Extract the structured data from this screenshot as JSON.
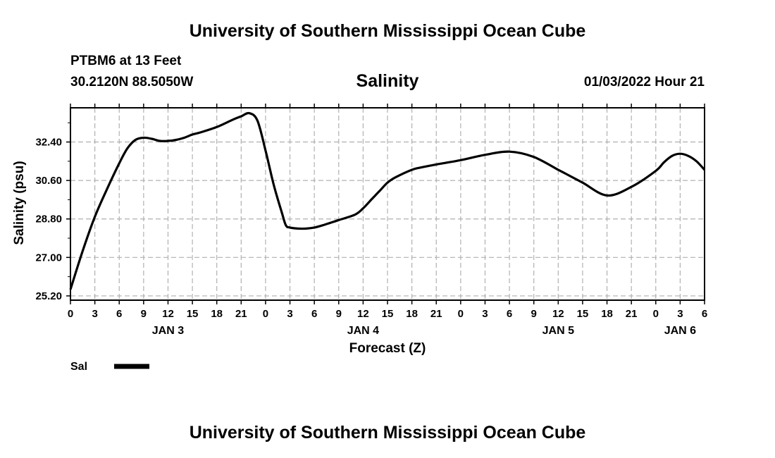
{
  "header": {
    "title": "University of Southern Mississippi Ocean Cube",
    "station": "PTBM6 at 13 Feet",
    "coords": "30.2120N  88.5050W",
    "chart_title": "Salinity",
    "timestamp": "01/03/2022 Hour 21"
  },
  "footer": {
    "title": "University of Southern Mississippi Ocean Cube"
  },
  "colors": {
    "line": "#000000",
    "grid": "#b0b0b0",
    "background": "#ffffff"
  },
  "chart_data": {
    "type": "line",
    "title": "Salinity",
    "xlabel": "Forecast (Z)",
    "ylabel": "Salinity (psu)",
    "grid": true,
    "legend_position": "bottom-left",
    "xlim": [
      0,
      78
    ],
    "ylim": [
      25.0,
      34.0
    ],
    "x_ticks": [
      0,
      3,
      6,
      9,
      12,
      15,
      18,
      21,
      24,
      27,
      30,
      33,
      36,
      39,
      42,
      45,
      48,
      51,
      54,
      57,
      60,
      63,
      66,
      69,
      72,
      75,
      78
    ],
    "x_tick_labels": [
      "0",
      "3",
      "6",
      "9",
      "12",
      "15",
      "18",
      "21",
      "0",
      "3",
      "6",
      "9",
      "12",
      "15",
      "18",
      "21",
      "0",
      "3",
      "6",
      "9",
      "12",
      "15",
      "18",
      "21",
      "0",
      "3",
      "6"
    ],
    "y_ticks": [
      25.2,
      27.0,
      28.8,
      30.6,
      32.4
    ],
    "y_tick_labels": [
      "25.20",
      "27.00",
      "28.80",
      "30.60",
      "32.40"
    ],
    "day_labels": [
      {
        "x": 12,
        "label": "JAN 3"
      },
      {
        "x": 36,
        "label": "JAN 4"
      },
      {
        "x": 60,
        "label": "JAN 5"
      },
      {
        "x": 75,
        "label": "JAN 6"
      }
    ],
    "series": [
      {
        "name": "Sal",
        "x": [
          0,
          1.5,
          3,
          4.5,
          6,
          7,
          8,
          9,
          10,
          11,
          12,
          13,
          14,
          15,
          16,
          18,
          20,
          21,
          22,
          23,
          24,
          25,
          26,
          26.5,
          27,
          28,
          29,
          30,
          31,
          33,
          35,
          36,
          37,
          38,
          39,
          40,
          42,
          43,
          45,
          48,
          51,
          54,
          57,
          60,
          61,
          63,
          66,
          69,
          72,
          73,
          74,
          75,
          76,
          77,
          78
        ],
        "y": [
          25.5,
          27.3,
          28.9,
          30.2,
          31.4,
          32.1,
          32.5,
          32.6,
          32.55,
          32.45,
          32.45,
          32.5,
          32.6,
          32.75,
          32.85,
          33.1,
          33.45,
          33.6,
          33.75,
          33.4,
          32.0,
          30.4,
          29.1,
          28.5,
          28.4,
          28.35,
          28.35,
          28.4,
          28.5,
          28.75,
          29.0,
          29.3,
          29.7,
          30.1,
          30.5,
          30.75,
          31.1,
          31.2,
          31.35,
          31.55,
          31.8,
          31.95,
          31.7,
          31.1,
          30.9,
          30.5,
          29.9,
          30.3,
          31.05,
          31.45,
          31.75,
          31.85,
          31.75,
          31.5,
          31.1
        ]
      }
    ]
  }
}
